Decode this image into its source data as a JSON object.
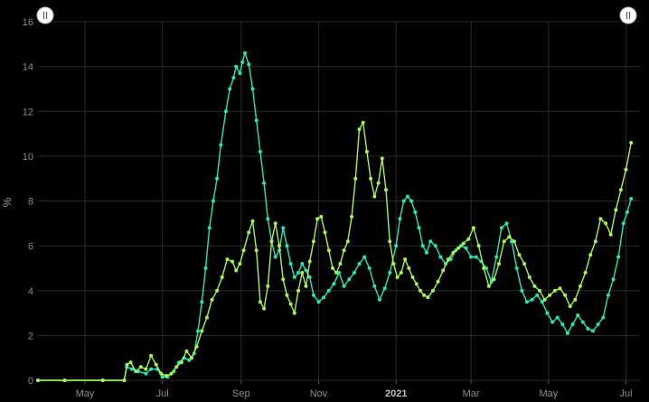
{
  "chart_data": {
    "type": "line",
    "ylabel": "%",
    "ylim": [
      0,
      16
    ],
    "y_ticks": [
      0,
      2,
      4,
      6,
      8,
      10,
      12,
      14,
      16
    ],
    "x_range": [
      "2020-03-25",
      "2021-07-12"
    ],
    "x_ticks": [
      {
        "date": "2020-05-01",
        "label": "May",
        "bold": false
      },
      {
        "date": "2020-07-01",
        "label": "Jul",
        "bold": false
      },
      {
        "date": "2020-09-01",
        "label": "Sep",
        "bold": false
      },
      {
        "date": "2020-11-01",
        "label": "Nov",
        "bold": false
      },
      {
        "date": "2021-01-01",
        "label": "2021",
        "bold": true
      },
      {
        "date": "2021-03-01",
        "label": "Mar",
        "bold": false
      },
      {
        "date": "2021-05-01",
        "label": "May",
        "bold": false
      },
      {
        "date": "2021-07-01",
        "label": "Jul",
        "bold": false
      }
    ],
    "grid": true,
    "series": [
      {
        "color": "#23e6b4",
        "points": [
          [
            "2020-03-25",
            0
          ],
          [
            "2020-04-15",
            0
          ],
          [
            "2020-05-15",
            0
          ],
          [
            "2020-06-01",
            0
          ],
          [
            "2020-06-03",
            0.6
          ],
          [
            "2020-06-07",
            0.5
          ],
          [
            "2020-06-12",
            0.4
          ],
          [
            "2020-06-18",
            0.3
          ],
          [
            "2020-06-22",
            0.5
          ],
          [
            "2020-06-27",
            0.5
          ],
          [
            "2020-07-01",
            0.15
          ],
          [
            "2020-07-05",
            0.15
          ],
          [
            "2020-07-10",
            0.4
          ],
          [
            "2020-07-14",
            0.8
          ],
          [
            "2020-07-18",
            1.0
          ],
          [
            "2020-07-22",
            0.9
          ],
          [
            "2020-07-26",
            1.2
          ],
          [
            "2020-07-29",
            2.2
          ],
          [
            "2020-08-01",
            3.5
          ],
          [
            "2020-08-04",
            5.0
          ],
          [
            "2020-08-07",
            6.8
          ],
          [
            "2020-08-10",
            8.0
          ],
          [
            "2020-08-13",
            9.0
          ],
          [
            "2020-08-16",
            10.5
          ],
          [
            "2020-08-20",
            12.0
          ],
          [
            "2020-08-23",
            13.0
          ],
          [
            "2020-08-26",
            13.5
          ],
          [
            "2020-08-28",
            14.0
          ],
          [
            "2020-08-31",
            13.7
          ],
          [
            "2020-09-02",
            14.2
          ],
          [
            "2020-09-04",
            14.6
          ],
          [
            "2020-09-07",
            14.1
          ],
          [
            "2020-09-10",
            13.0
          ],
          [
            "2020-09-13",
            11.6
          ],
          [
            "2020-09-16",
            10.2
          ],
          [
            "2020-09-19",
            8.8
          ],
          [
            "2020-09-22",
            7.2
          ],
          [
            "2020-09-25",
            6.2
          ],
          [
            "2020-09-28",
            5.5
          ],
          [
            "2020-10-01",
            5.8
          ],
          [
            "2020-10-04",
            6.8
          ],
          [
            "2020-10-07",
            6.0
          ],
          [
            "2020-10-10",
            5.2
          ],
          [
            "2020-10-13",
            4.6
          ],
          [
            "2020-10-16",
            4.8
          ],
          [
            "2020-10-19",
            5.2
          ],
          [
            "2020-10-22",
            4.9
          ],
          [
            "2020-10-25",
            4.6
          ],
          [
            "2020-10-28",
            3.8
          ],
          [
            "2020-11-01",
            3.5
          ],
          [
            "2020-11-05",
            3.7
          ],
          [
            "2020-11-09",
            4.0
          ],
          [
            "2020-11-13",
            4.3
          ],
          [
            "2020-11-17",
            4.8
          ],
          [
            "2020-11-21",
            4.2
          ],
          [
            "2020-11-25",
            4.5
          ],
          [
            "2020-11-29",
            4.8
          ],
          [
            "2020-12-03",
            5.2
          ],
          [
            "2020-12-07",
            5.5
          ],
          [
            "2020-12-11",
            5.0
          ],
          [
            "2020-12-15",
            4.2
          ],
          [
            "2020-12-19",
            3.6
          ],
          [
            "2020-12-23",
            4.1
          ],
          [
            "2020-12-27",
            4.8
          ],
          [
            "2021-01-01",
            6.0
          ],
          [
            "2021-01-04",
            7.2
          ],
          [
            "2021-01-07",
            8.0
          ],
          [
            "2021-01-10",
            8.2
          ],
          [
            "2021-01-13",
            8.0
          ],
          [
            "2021-01-16",
            7.5
          ],
          [
            "2021-01-19",
            6.8
          ],
          [
            "2021-01-22",
            6.0
          ],
          [
            "2021-01-25",
            5.7
          ],
          [
            "2021-01-28",
            6.2
          ],
          [
            "2021-02-01",
            6.0
          ],
          [
            "2021-02-05",
            5.5
          ],
          [
            "2021-02-09",
            5.2
          ],
          [
            "2021-02-13",
            5.4
          ],
          [
            "2021-02-17",
            5.8
          ],
          [
            "2021-02-21",
            6.0
          ],
          [
            "2021-02-25",
            5.9
          ],
          [
            "2021-03-01",
            5.5
          ],
          [
            "2021-03-05",
            5.5
          ],
          [
            "2021-03-09",
            5.3
          ],
          [
            "2021-03-13",
            5.0
          ],
          [
            "2021-03-17",
            4.4
          ],
          [
            "2021-03-21",
            5.5
          ],
          [
            "2021-03-25",
            6.8
          ],
          [
            "2021-03-29",
            7.0
          ],
          [
            "2021-04-02",
            6.2
          ],
          [
            "2021-04-06",
            5.0
          ],
          [
            "2021-04-10",
            4.0
          ],
          [
            "2021-04-14",
            3.5
          ],
          [
            "2021-04-18",
            3.6
          ],
          [
            "2021-04-22",
            3.8
          ],
          [
            "2021-04-26",
            3.5
          ],
          [
            "2021-04-30",
            3.0
          ],
          [
            "2021-05-04",
            2.6
          ],
          [
            "2021-05-08",
            2.8
          ],
          [
            "2021-05-12",
            2.5
          ],
          [
            "2021-05-16",
            2.1
          ],
          [
            "2021-05-20",
            2.5
          ],
          [
            "2021-05-24",
            2.9
          ],
          [
            "2021-05-28",
            2.6
          ],
          [
            "2021-06-01",
            2.3
          ],
          [
            "2021-06-05",
            2.2
          ],
          [
            "2021-06-09",
            2.5
          ],
          [
            "2021-06-13",
            2.8
          ],
          [
            "2021-06-17",
            3.8
          ],
          [
            "2021-06-21",
            4.5
          ],
          [
            "2021-06-25",
            5.5
          ],
          [
            "2021-06-29",
            7.0
          ],
          [
            "2021-07-02",
            7.5
          ],
          [
            "2021-07-05",
            8.1
          ]
        ]
      },
      {
        "color": "#a6f24e",
        "points": [
          [
            "2020-03-25",
            0
          ],
          [
            "2020-04-15",
            0
          ],
          [
            "2020-05-15",
            0
          ],
          [
            "2020-06-01",
            0
          ],
          [
            "2020-06-03",
            0.7
          ],
          [
            "2020-06-06",
            0.8
          ],
          [
            "2020-06-10",
            0.4
          ],
          [
            "2020-06-14",
            0.6
          ],
          [
            "2020-06-18",
            0.5
          ],
          [
            "2020-06-22",
            1.1
          ],
          [
            "2020-06-26",
            0.7
          ],
          [
            "2020-06-30",
            0.3
          ],
          [
            "2020-07-04",
            0.2
          ],
          [
            "2020-07-08",
            0.3
          ],
          [
            "2020-07-12",
            0.6
          ],
          [
            "2020-07-16",
            0.8
          ],
          [
            "2020-07-20",
            1.3
          ],
          [
            "2020-07-24",
            1.0
          ],
          [
            "2020-07-28",
            1.5
          ],
          [
            "2020-08-01",
            2.2
          ],
          [
            "2020-08-05",
            2.8
          ],
          [
            "2020-08-09",
            3.6
          ],
          [
            "2020-08-13",
            4.0
          ],
          [
            "2020-08-17",
            4.6
          ],
          [
            "2020-08-21",
            5.4
          ],
          [
            "2020-08-25",
            5.3
          ],
          [
            "2020-08-28",
            4.9
          ],
          [
            "2020-08-31",
            5.2
          ],
          [
            "2020-09-03",
            5.8
          ],
          [
            "2020-09-07",
            6.6
          ],
          [
            "2020-09-10",
            7.1
          ],
          [
            "2020-09-13",
            5.8
          ],
          [
            "2020-09-16",
            3.5
          ],
          [
            "2020-09-19",
            3.2
          ],
          [
            "2020-09-22",
            4.2
          ],
          [
            "2020-09-25",
            6.2
          ],
          [
            "2020-09-28",
            7.0
          ],
          [
            "2020-10-01",
            6.0
          ],
          [
            "2020-10-04",
            4.5
          ],
          [
            "2020-10-07",
            3.8
          ],
          [
            "2020-10-10",
            3.4
          ],
          [
            "2020-10-13",
            3.0
          ],
          [
            "2020-10-16",
            4.0
          ],
          [
            "2020-10-19",
            4.8
          ],
          [
            "2020-10-22",
            4.2
          ],
          [
            "2020-10-25",
            5.3
          ],
          [
            "2020-10-28",
            6.2
          ],
          [
            "2020-10-31",
            7.2
          ],
          [
            "2020-11-03",
            7.3
          ],
          [
            "2020-11-06",
            6.6
          ],
          [
            "2020-11-09",
            5.8
          ],
          [
            "2020-11-12",
            5.0
          ],
          [
            "2020-11-15",
            4.8
          ],
          [
            "2020-11-18",
            5.2
          ],
          [
            "2020-11-21",
            5.8
          ],
          [
            "2020-11-24",
            6.2
          ],
          [
            "2020-11-27",
            7.3
          ],
          [
            "2020-11-30",
            9.0
          ],
          [
            "2020-12-03",
            11.2
          ],
          [
            "2020-12-06",
            11.5
          ],
          [
            "2020-12-09",
            10.2
          ],
          [
            "2020-12-12",
            9.0
          ],
          [
            "2020-12-15",
            8.2
          ],
          [
            "2020-12-18",
            8.8
          ],
          [
            "2020-12-21",
            9.9
          ],
          [
            "2020-12-24",
            8.5
          ],
          [
            "2020-12-27",
            6.2
          ],
          [
            "2020-12-30",
            5.2
          ],
          [
            "2021-01-02",
            4.6
          ],
          [
            "2021-01-05",
            4.8
          ],
          [
            "2021-01-08",
            5.4
          ],
          [
            "2021-01-11",
            5.0
          ],
          [
            "2021-01-14",
            4.6
          ],
          [
            "2021-01-17",
            4.3
          ],
          [
            "2021-01-20",
            4.0
          ],
          [
            "2021-01-23",
            3.8
          ],
          [
            "2021-01-26",
            3.7
          ],
          [
            "2021-01-30",
            4.0
          ],
          [
            "2021-02-03",
            4.4
          ],
          [
            "2021-02-07",
            4.9
          ],
          [
            "2021-02-11",
            5.4
          ],
          [
            "2021-02-15",
            5.7
          ],
          [
            "2021-02-19",
            5.9
          ],
          [
            "2021-02-23",
            6.1
          ],
          [
            "2021-02-27",
            6.3
          ],
          [
            "2021-03-03",
            6.8
          ],
          [
            "2021-03-07",
            6.0
          ],
          [
            "2021-03-11",
            5.0
          ],
          [
            "2021-03-15",
            4.2
          ],
          [
            "2021-03-19",
            4.5
          ],
          [
            "2021-03-23",
            5.2
          ],
          [
            "2021-03-27",
            6.2
          ],
          [
            "2021-03-31",
            6.4
          ],
          [
            "2021-04-04",
            6.2
          ],
          [
            "2021-04-08",
            5.6
          ],
          [
            "2021-04-12",
            5.2
          ],
          [
            "2021-04-16",
            4.6
          ],
          [
            "2021-04-20",
            4.2
          ],
          [
            "2021-04-24",
            4.0
          ],
          [
            "2021-04-28",
            3.6
          ],
          [
            "2021-05-02",
            3.8
          ],
          [
            "2021-05-06",
            4.0
          ],
          [
            "2021-05-10",
            4.1
          ],
          [
            "2021-05-14",
            3.8
          ],
          [
            "2021-05-18",
            3.3
          ],
          [
            "2021-05-22",
            3.6
          ],
          [
            "2021-05-26",
            4.2
          ],
          [
            "2021-05-30",
            4.8
          ],
          [
            "2021-06-03",
            5.6
          ],
          [
            "2021-06-07",
            6.2
          ],
          [
            "2021-06-11",
            7.2
          ],
          [
            "2021-06-15",
            7.0
          ],
          [
            "2021-06-19",
            6.5
          ],
          [
            "2021-06-23",
            7.6
          ],
          [
            "2021-06-27",
            8.5
          ],
          [
            "2021-07-01",
            9.4
          ],
          [
            "2021-07-05",
            10.6
          ]
        ]
      }
    ]
  },
  "range_handles": {
    "left_icon": "drag-handle-icon",
    "right_icon": "drag-handle-icon"
  }
}
